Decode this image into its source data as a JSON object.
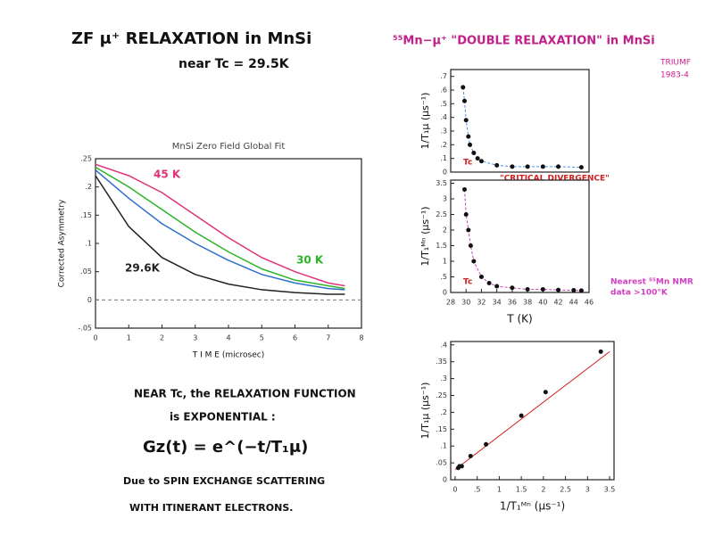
{
  "title": "ZF μ⁺ RELAXATION in MnSi",
  "subtitle": "near Tc = 29.5K",
  "right_title": "⁵⁵Mn−μ⁺ \"DOUBLE RELAXATION\" in MnSi",
  "stamp": [
    "TRIUMF",
    "1983-4"
  ],
  "notes": [
    "NEAR Tc, the RELAXATION FUNCTION",
    "is EXPONENTIAL :",
    "Gz(t) = e^(−t/T₁μ)",
    "Due to SPIN EXCHANGE SCATTERING",
    "WITH ITINERANT ELECTRONS."
  ],
  "chart_data": [
    {
      "type": "line",
      "title": "MnSi Zero Field Global Fit",
      "x_label": "T I M E (microsec)",
      "y_label": "Corrected Asymmetry",
      "x": [
        0,
        1,
        2,
        3,
        4,
        5,
        6,
        7,
        7.5
      ],
      "series": [
        {
          "name": "45 K",
          "color": "#e0327a",
          "values": [
            0.24,
            0.22,
            0.19,
            0.15,
            0.11,
            0.075,
            0.05,
            0.03,
            0.025
          ]
        },
        {
          "name": "30 K",
          "color": "#2bb52b",
          "values": [
            0.235,
            0.2,
            0.16,
            0.12,
            0.085,
            0.055,
            0.035,
            0.025,
            0.02
          ]
        },
        {
          "color": "#2f6fd0",
          "values": [
            0.23,
            0.18,
            0.135,
            0.1,
            0.07,
            0.045,
            0.03,
            0.02,
            0.018
          ]
        },
        {
          "name": "29.6K",
          "color": "#222222",
          "values": [
            0.22,
            0.13,
            0.075,
            0.045,
            0.028,
            0.018,
            0.013,
            0.01,
            0.01
          ]
        }
      ],
      "xlim": [
        0,
        8
      ],
      "xticks": [
        0,
        1,
        2,
        3,
        4,
        5,
        6,
        7,
        8
      ],
      "ylim": [
        -0.05,
        0.25
      ],
      "yticks": [
        {
          "value": 0.25,
          "label": ".25"
        },
        {
          "value": 0.2,
          "label": ".2"
        },
        {
          "value": 0.15,
          "label": ".15"
        },
        {
          "value": 0.1,
          "label": ".1"
        },
        {
          "value": 0.05,
          "label": ".05"
        },
        0,
        {
          "value": -0.05,
          "label": "-.05"
        }
      ]
    },
    {
      "type": "scatter",
      "y_label": "1/T₁μ (μs⁻¹)",
      "color": "#4a90e2",
      "annotations": [
        "Tc",
        "\"CRITICAL DIVERGENCE\""
      ],
      "x": [
        29.6,
        29.8,
        30,
        30.3,
        30.5,
        31,
        31.5,
        32,
        34,
        36,
        38,
        40,
        42,
        45
      ],
      "values": [
        0.62,
        0.52,
        0.38,
        0.26,
        0.2,
        0.14,
        0.1,
        0.08,
        0.05,
        0.04,
        0.04,
        0.04,
        0.04,
        0.035
      ],
      "xlim": [
        28,
        46
      ],
      "ylim": [
        0,
        0.75
      ],
      "yticks": [
        0,
        {
          "value": 0.1,
          "label": ".1"
        },
        {
          "value": 0.2,
          "label": ".2"
        },
        {
          "value": 0.3,
          "label": ".3"
        },
        {
          "value": 0.4,
          "label": ".4"
        },
        {
          "value": 0.5,
          "label": ".5"
        },
        {
          "value": 0.6,
          "label": ".6"
        },
        {
          "value": 0.7,
          "label": ".7"
        }
      ]
    },
    {
      "type": "scatter",
      "y_label": "1/T₁ᴹⁿ (μs⁻¹)",
      "x_label": "T (K)",
      "color": "#d040c0",
      "annotations": [
        "Tc",
        "Nearest ⁵⁵Mn NMR",
        "data >100°K"
      ],
      "x": [
        29.8,
        30,
        30.3,
        30.6,
        31,
        32,
        33,
        34,
        36,
        38,
        40,
        42,
        44,
        45
      ],
      "values": [
        3.3,
        2.5,
        2.0,
        1.5,
        1.0,
        0.5,
        0.3,
        0.2,
        0.15,
        0.1,
        0.1,
        0.08,
        0.07,
        0.06
      ],
      "xlim": [
        28,
        46
      ],
      "xticks": [
        28,
        30,
        32,
        34,
        36,
        38,
        40,
        42,
        44,
        46
      ],
      "ylim": [
        0,
        3.6
      ],
      "yticks": [
        0,
        {
          "value": 0.5,
          "label": ".5"
        },
        1,
        1.5,
        2,
        2.5,
        3,
        3.5
      ]
    },
    {
      "type": "scatter",
      "y_label": "1/T₁μ (μs⁻¹)",
      "x_label": "1/T₁ᴹⁿ (μs⁻¹)",
      "color": "#d02020",
      "x": [
        0.07,
        0.1,
        0.15,
        0.35,
        0.7,
        1.5,
        2.05,
        3.3
      ],
      "values": [
        0.035,
        0.04,
        0.04,
        0.07,
        0.105,
        0.19,
        0.26,
        0.38
      ],
      "fit_x": [
        0,
        3.5
      ],
      "fit_y": [
        0.03,
        0.38
      ],
      "xlim": [
        -0.1,
        3.6
      ],
      "xticks": [
        0,
        {
          "value": 0.5,
          "label": ".5"
        },
        1,
        1.5,
        2,
        2.5,
        3,
        3.5
      ],
      "ylim": [
        0,
        0.41
      ],
      "yticks": [
        0,
        {
          "value": 0.05,
          "label": ".05"
        },
        {
          "value": 0.1,
          "label": ".1"
        },
        {
          "value": 0.15,
          "label": ".15"
        },
        {
          "value": 0.2,
          "label": ".2"
        },
        {
          "value": 0.25,
          "label": ".25"
        },
        {
          "value": 0.3,
          "label": ".3"
        },
        {
          "value": 0.35,
          "label": ".35"
        },
        {
          "value": 0.4,
          "label": ".4"
        }
      ]
    }
  ]
}
